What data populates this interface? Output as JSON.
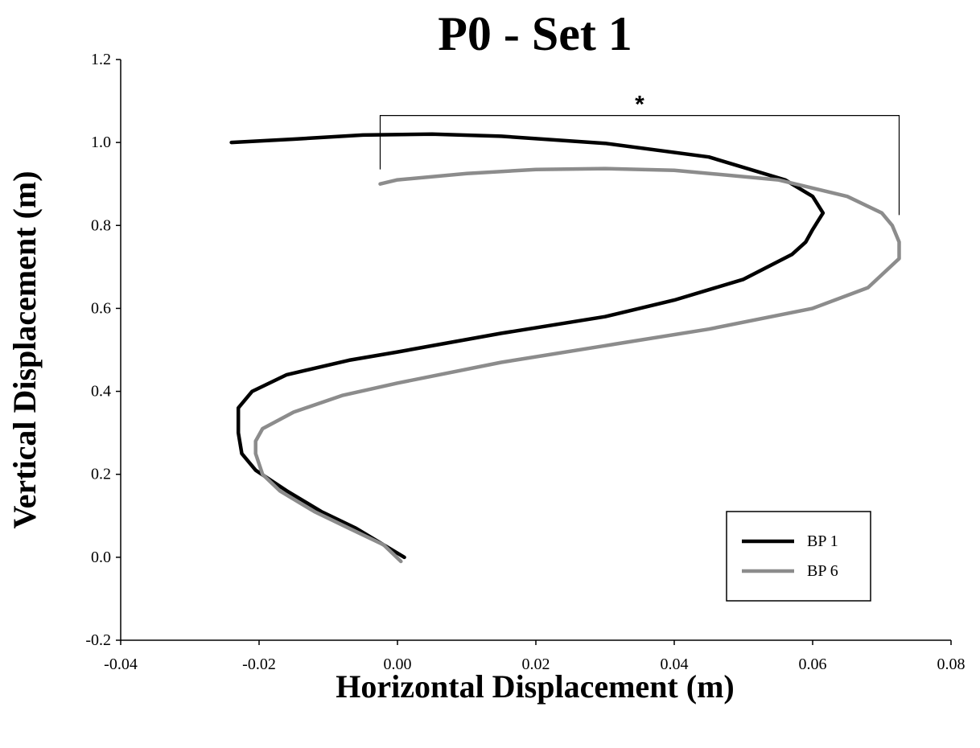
{
  "chart_data": {
    "type": "line",
    "title": "P0 - Set 1",
    "xlabel": "Horizontal Displacement (m)",
    "ylabel": "Vertical Displacement (m)",
    "xlim": [
      -0.04,
      0.08
    ],
    "ylim": [
      -0.2,
      1.2
    ],
    "x_ticks": [
      -0.04,
      -0.02,
      0.0,
      0.02,
      0.04,
      0.06,
      0.08
    ],
    "x_tick_labels": [
      "-0.04",
      "-0.02",
      "0.00",
      "0.02",
      "0.04",
      "0.06",
      "0.08"
    ],
    "y_ticks": [
      -0.2,
      0.0,
      0.2,
      0.4,
      0.6,
      0.8,
      1.0,
      1.2
    ],
    "y_tick_labels": [
      "-0.2",
      "0.0",
      "0.2",
      "0.4",
      "0.6",
      "0.8",
      "1.0",
      "1.2"
    ],
    "grid": false,
    "legend_position": "bottom-right",
    "annotation": {
      "text": "*",
      "x_start": -0.0025,
      "x_end": 0.0725,
      "y": 1.065,
      "left_drop_to": 0.935,
      "right_drop_to": 0.825
    },
    "series": [
      {
        "name": "BP 1",
        "color": "#000000",
        "points": [
          [
            0.001,
            0.0
          ],
          [
            -0.002,
            0.03
          ],
          [
            -0.006,
            0.07
          ],
          [
            -0.011,
            0.11
          ],
          [
            -0.016,
            0.16
          ],
          [
            -0.0205,
            0.21
          ],
          [
            -0.0225,
            0.25
          ],
          [
            -0.023,
            0.3
          ],
          [
            -0.023,
            0.36
          ],
          [
            -0.021,
            0.4
          ],
          [
            -0.016,
            0.44
          ],
          [
            -0.007,
            0.475
          ],
          [
            0.0,
            0.495
          ],
          [
            0.015,
            0.54
          ],
          [
            0.03,
            0.58
          ],
          [
            0.04,
            0.62
          ],
          [
            0.05,
            0.67
          ],
          [
            0.057,
            0.73
          ],
          [
            0.059,
            0.76
          ],
          [
            0.06,
            0.79
          ],
          [
            0.0615,
            0.83
          ],
          [
            0.06,
            0.87
          ],
          [
            0.056,
            0.91
          ],
          [
            0.045,
            0.965
          ],
          [
            0.03,
            0.998
          ],
          [
            0.015,
            1.015
          ],
          [
            0.005,
            1.02
          ],
          [
            -0.005,
            1.018
          ],
          [
            -0.015,
            1.008
          ],
          [
            -0.024,
            1.0
          ]
        ]
      },
      {
        "name": "BP 6",
        "color": "#8c8c8c",
        "points": [
          [
            0.0005,
            -0.01
          ],
          [
            -0.002,
            0.03
          ],
          [
            -0.007,
            0.07
          ],
          [
            -0.012,
            0.11
          ],
          [
            -0.017,
            0.16
          ],
          [
            -0.0195,
            0.2
          ],
          [
            -0.0205,
            0.25
          ],
          [
            -0.0205,
            0.28
          ],
          [
            -0.0195,
            0.31
          ],
          [
            -0.015,
            0.35
          ],
          [
            -0.008,
            0.39
          ],
          [
            0.0,
            0.42
          ],
          [
            0.015,
            0.47
          ],
          [
            0.03,
            0.51
          ],
          [
            0.045,
            0.55
          ],
          [
            0.06,
            0.6
          ],
          [
            0.068,
            0.65
          ],
          [
            0.0725,
            0.72
          ],
          [
            0.0725,
            0.76
          ],
          [
            0.0715,
            0.8
          ],
          [
            0.07,
            0.83
          ],
          [
            0.065,
            0.87
          ],
          [
            0.055,
            0.91
          ],
          [
            0.04,
            0.933
          ],
          [
            0.03,
            0.937
          ],
          [
            0.02,
            0.935
          ],
          [
            0.01,
            0.925
          ],
          [
            0.0,
            0.91
          ],
          [
            -0.0025,
            0.9
          ]
        ]
      }
    ]
  }
}
